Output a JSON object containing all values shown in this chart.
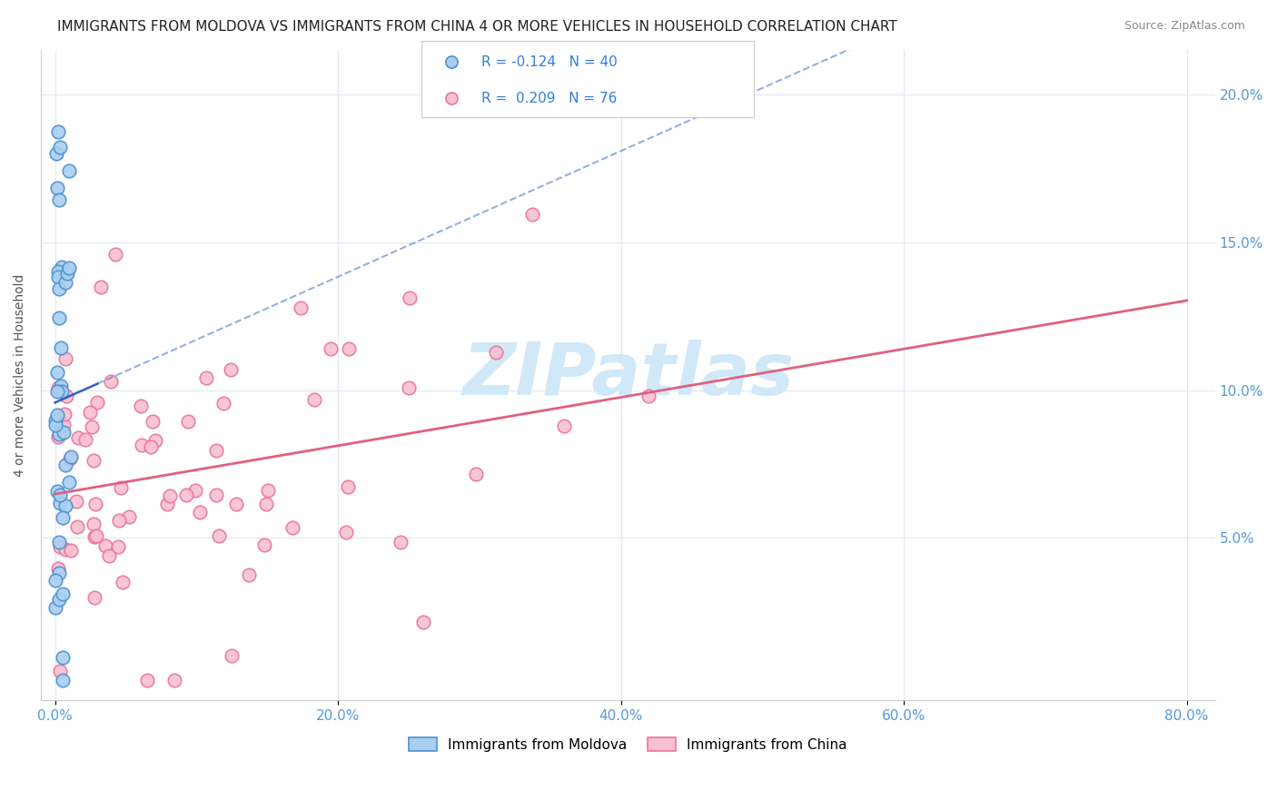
{
  "title": "IMMIGRANTS FROM MOLDOVA VS IMMIGRANTS FROM CHINA 4 OR MORE VEHICLES IN HOUSEHOLD CORRELATION CHART",
  "source": "Source: ZipAtlas.com",
  "ylabel": "4 or more Vehicles in Household",
  "xlim_min": -0.01,
  "xlim_max": 0.82,
  "ylim_min": -0.005,
  "ylim_max": 0.215,
  "xtick_values": [
    0.0,
    0.2,
    0.4,
    0.6,
    0.8
  ],
  "xtick_labels": [
    "0.0%",
    "20.0%",
    "40.0%",
    "60.0%",
    "80.0%"
  ],
  "ytick_values": [
    0.05,
    0.1,
    0.15,
    0.2
  ],
  "ytick_labels": [
    "5.0%",
    "10.0%",
    "15.0%",
    "20.0%"
  ],
  "moldova_color": "#a8cff0",
  "moldova_edge": "#5090d0",
  "china_color": "#f8c0d0",
  "china_edge": "#e87898",
  "moldova_line_color": "#3060c0",
  "china_line_color": "#e06080",
  "watermark_color": "#d0e8f8",
  "legend_entry1": "R = -0.124   N = 40",
  "legend_entry2": "R =  0.209   N = 76",
  "legend_text_color": "#3080e0",
  "bottom_legend1": "Immigrants from Moldova",
  "bottom_legend2": "Immigrants from China",
  "moldova_R": -0.124,
  "china_R": 0.209,
  "moldova_N": 40,
  "china_N": 76
}
